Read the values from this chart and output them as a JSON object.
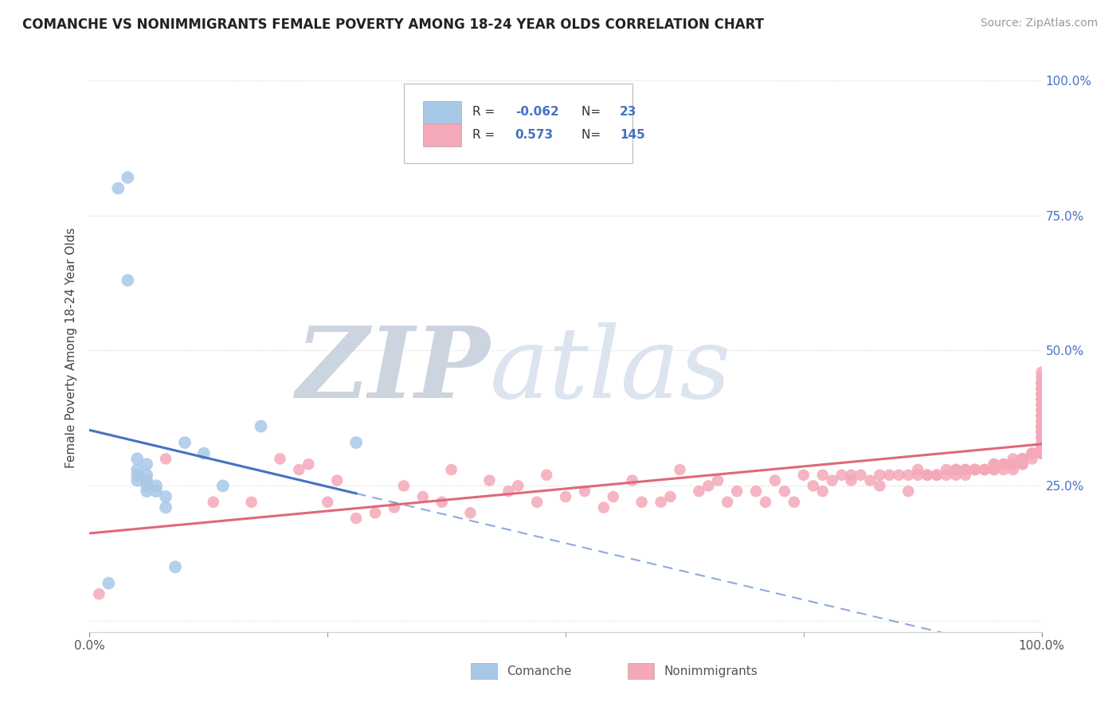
{
  "title": "COMANCHE VS NONIMMIGRANTS FEMALE POVERTY AMONG 18-24 YEAR OLDS CORRELATION CHART",
  "source": "Source: ZipAtlas.com",
  "ylabel": "Female Poverty Among 18-24 Year Olds",
  "comanche_color": "#A8C8E8",
  "nonimmigrants_color": "#F4A8B8",
  "comanche_line_color": "#4472C4",
  "nonimmigrants_line_color": "#E06878",
  "comanche_R": -0.062,
  "comanche_N": 23,
  "nonimmigrants_R": 0.573,
  "nonimmigrants_N": 145,
  "comanche_scatter_x": [
    0.02,
    0.03,
    0.04,
    0.04,
    0.05,
    0.05,
    0.05,
    0.05,
    0.06,
    0.06,
    0.06,
    0.06,
    0.06,
    0.07,
    0.07,
    0.08,
    0.08,
    0.09,
    0.1,
    0.12,
    0.14,
    0.18,
    0.28
  ],
  "comanche_scatter_y": [
    0.07,
    0.8,
    0.82,
    0.63,
    0.3,
    0.28,
    0.27,
    0.26,
    0.29,
    0.27,
    0.26,
    0.25,
    0.24,
    0.25,
    0.24,
    0.23,
    0.21,
    0.1,
    0.33,
    0.31,
    0.25,
    0.36,
    0.33
  ],
  "nonimmigrants_scatter_x": [
    0.01,
    0.08,
    0.13,
    0.17,
    0.2,
    0.22,
    0.23,
    0.25,
    0.26,
    0.28,
    0.3,
    0.32,
    0.33,
    0.35,
    0.37,
    0.38,
    0.4,
    0.42,
    0.44,
    0.45,
    0.47,
    0.48,
    0.5,
    0.52,
    0.54,
    0.55,
    0.57,
    0.58,
    0.6,
    0.61,
    0.62,
    0.64,
    0.65,
    0.66,
    0.67,
    0.68,
    0.7,
    0.71,
    0.72,
    0.73,
    0.74,
    0.75,
    0.76,
    0.77,
    0.77,
    0.78,
    0.79,
    0.8,
    0.8,
    0.81,
    0.82,
    0.83,
    0.83,
    0.84,
    0.85,
    0.86,
    0.86,
    0.87,
    0.87,
    0.88,
    0.88,
    0.89,
    0.89,
    0.9,
    0.9,
    0.91,
    0.91,
    0.91,
    0.92,
    0.92,
    0.92,
    0.93,
    0.93,
    0.93,
    0.94,
    0.94,
    0.94,
    0.95,
    0.95,
    0.95,
    0.95,
    0.96,
    0.96,
    0.96,
    0.96,
    0.97,
    0.97,
    0.97,
    0.97,
    0.97,
    0.98,
    0.98,
    0.98,
    0.98,
    0.98,
    0.98,
    0.99,
    0.99,
    0.99,
    0.99,
    0.99,
    0.99,
    1.0,
    1.0,
    1.0,
    1.0,
    1.0,
    1.0,
    1.0,
    1.0,
    1.0,
    1.0,
    1.0,
    1.0,
    1.0,
    1.0,
    1.0,
    1.0,
    1.0,
    1.0,
    1.0,
    1.0,
    1.0,
    1.0,
    1.0,
    1.0,
    1.0,
    1.0,
    1.0,
    1.0,
    1.0,
    1.0,
    1.0,
    1.0,
    1.0,
    1.0,
    1.0,
    1.0,
    1.0,
    1.0,
    1.0
  ],
  "nonimmigrants_scatter_y": [
    0.05,
    0.3,
    0.22,
    0.22,
    0.3,
    0.28,
    0.29,
    0.22,
    0.26,
    0.19,
    0.2,
    0.21,
    0.25,
    0.23,
    0.22,
    0.28,
    0.2,
    0.26,
    0.24,
    0.25,
    0.22,
    0.27,
    0.23,
    0.24,
    0.21,
    0.23,
    0.26,
    0.22,
    0.22,
    0.23,
    0.28,
    0.24,
    0.25,
    0.26,
    0.22,
    0.24,
    0.24,
    0.22,
    0.26,
    0.24,
    0.22,
    0.27,
    0.25,
    0.27,
    0.24,
    0.26,
    0.27,
    0.26,
    0.27,
    0.27,
    0.26,
    0.25,
    0.27,
    0.27,
    0.27,
    0.24,
    0.27,
    0.27,
    0.28,
    0.27,
    0.27,
    0.27,
    0.27,
    0.28,
    0.27,
    0.27,
    0.28,
    0.28,
    0.28,
    0.27,
    0.28,
    0.28,
    0.28,
    0.28,
    0.28,
    0.28,
    0.28,
    0.29,
    0.28,
    0.29,
    0.28,
    0.29,
    0.29,
    0.29,
    0.28,
    0.28,
    0.29,
    0.29,
    0.29,
    0.3,
    0.29,
    0.29,
    0.3,
    0.3,
    0.3,
    0.3,
    0.3,
    0.31,
    0.31,
    0.31,
    0.31,
    0.31,
    0.31,
    0.31,
    0.31,
    0.32,
    0.32,
    0.32,
    0.32,
    0.33,
    0.34,
    0.34,
    0.34,
    0.35,
    0.35,
    0.36,
    0.36,
    0.37,
    0.37,
    0.38,
    0.39,
    0.39,
    0.4,
    0.41,
    0.41,
    0.42,
    0.43,
    0.43,
    0.44,
    0.44,
    0.44,
    0.45,
    0.38,
    0.42,
    0.46,
    0.44,
    0.35,
    0.36,
    0.38,
    0.4,
    0.42
  ],
  "background_color": "#ffffff",
  "grid_color": "#d8d8d8",
  "right_tick_color": "#4472C4",
  "watermark_zip": "ZIP",
  "watermark_atlas": "atlas",
  "watermark_color": "#ccd4e0"
}
